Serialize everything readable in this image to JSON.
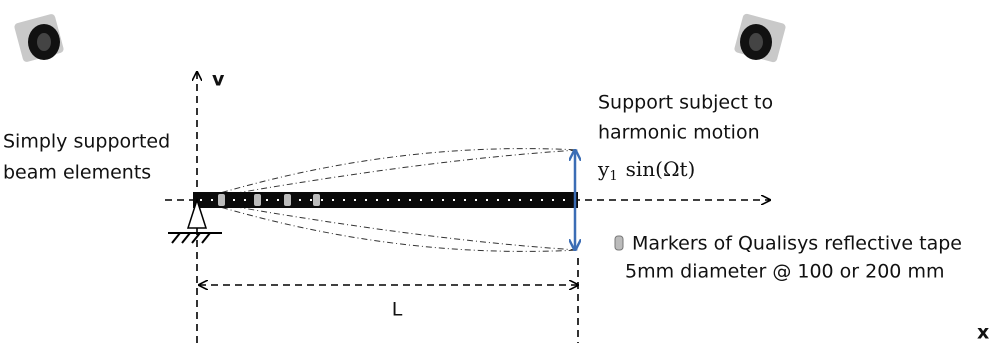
{
  "axes": {
    "vertical": "v",
    "horizontal": "x"
  },
  "beam_label": {
    "lines": [
      "Simply supported",
      "beam elements"
    ]
  },
  "support_label": {
    "lines": [
      "Support subject to",
      "harmonic motion"
    ]
  },
  "motion": {
    "base": "y",
    "subscript": "1",
    "rest": "sin(Ωt)"
  },
  "marker_label": {
    "lines": [
      "Markers of Qualisys reflective tape",
      "5mm diameter @ 100 or 200 mm"
    ]
  },
  "length": "L"
}
